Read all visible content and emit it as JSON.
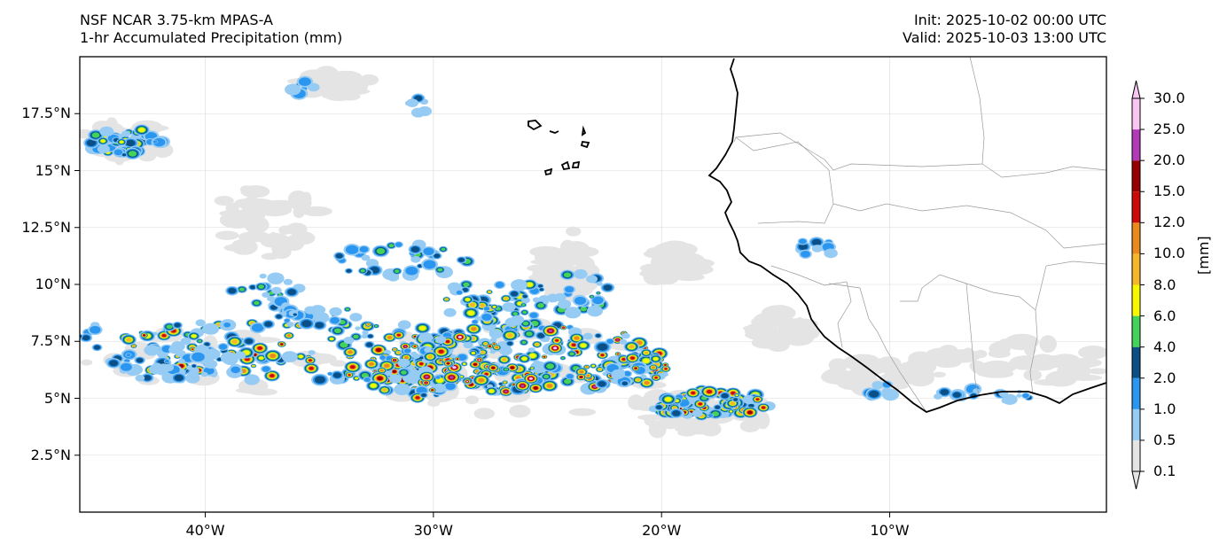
{
  "header": {
    "model": "NSF NCAR 3.75-km MPAS-A",
    "field": "1-hr Accumulated Precipitation (mm)",
    "init": "Init: 2025-10-02 00:00 UTC",
    "valid": "Valid: 2025-10-03 13:00 UTC"
  },
  "map": {
    "lon_range": [
      -45.5,
      -0.5
    ],
    "lat_range": [
      0,
      20
    ],
    "x_ticks": [
      {
        "lon": -40,
        "label": "40°W"
      },
      {
        "lon": -30,
        "label": "30°W"
      },
      {
        "lon": -20,
        "label": "20°W"
      },
      {
        "lon": -10,
        "label": "10°W"
      }
    ],
    "y_ticks": [
      {
        "lat": 17.5,
        "label": "17.5°N"
      },
      {
        "lat": 15,
        "label": "15°N"
      },
      {
        "lat": 12.5,
        "label": "12.5°N"
      },
      {
        "lat": 10,
        "label": "10°N"
      },
      {
        "lat": 7.5,
        "label": "7.5°N"
      },
      {
        "lat": 5,
        "label": "5°N"
      },
      {
        "lat": 2.5,
        "label": "2.5°N"
      }
    ],
    "coastline_color": "#000000",
    "border_color": "#9a9a9a",
    "grid_color": "#d9d9d9"
  },
  "colorbar": {
    "label": "[mm]",
    "levels": [
      "0.1",
      "0.5",
      "1.0",
      "2.0",
      "4.0",
      "6.0",
      "8.0",
      "10.0",
      "12.0",
      "15.0",
      "20.0",
      "25.0",
      "30.0"
    ],
    "colors": [
      "#e4e4e4",
      "#96cbf4",
      "#2a96f0",
      "#0a4f85",
      "#43d25a",
      "#f7f700",
      "#f6b62a",
      "#ea8a1e",
      "#cc0a0a",
      "#960000",
      "#b23ab8",
      "#f9c6f3"
    ]
  }
}
